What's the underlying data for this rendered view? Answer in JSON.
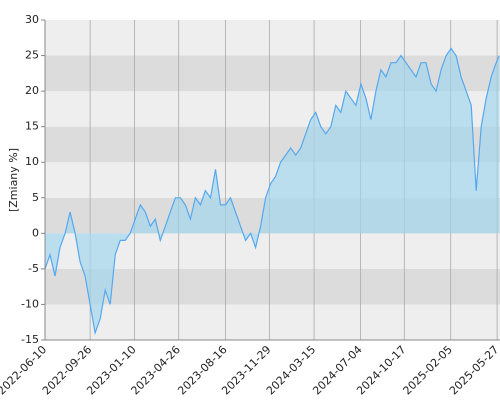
{
  "chart_data": {
    "type": "area",
    "y_label": "[Zmiany %]",
    "x": [
      "2022-06-10",
      "2022-06-22",
      "2022-07-04",
      "2022-07-16",
      "2022-07-28",
      "2022-08-09",
      "2022-08-21",
      "2022-09-02",
      "2022-09-14",
      "2022-09-26",
      "2022-10-08",
      "2022-10-20",
      "2022-11-01",
      "2022-11-13",
      "2022-11-25",
      "2022-12-07",
      "2022-12-19",
      "2022-12-31",
      "2023-01-12",
      "2023-01-24",
      "2023-02-05",
      "2023-02-17",
      "2023-03-01",
      "2023-03-13",
      "2023-03-25",
      "2023-04-06",
      "2023-04-18",
      "2023-04-30",
      "2023-05-12",
      "2023-05-24",
      "2023-06-05",
      "2023-06-17",
      "2023-06-29",
      "2023-07-11",
      "2023-07-23",
      "2023-08-04",
      "2023-08-16",
      "2023-08-28",
      "2023-09-09",
      "2023-09-21",
      "2023-10-03",
      "2023-10-15",
      "2023-10-27",
      "2023-11-08",
      "2023-11-20",
      "2023-12-02",
      "2023-12-14",
      "2023-12-26",
      "2024-01-07",
      "2024-01-19",
      "2024-01-31",
      "2024-02-12",
      "2024-02-24",
      "2024-03-07",
      "2024-03-19",
      "2024-03-31",
      "2024-04-12",
      "2024-04-24",
      "2024-05-06",
      "2024-05-18",
      "2024-05-30",
      "2024-06-11",
      "2024-06-23",
      "2024-07-05",
      "2024-07-17",
      "2024-07-29",
      "2024-08-10",
      "2024-08-22",
      "2024-09-03",
      "2024-09-15",
      "2024-09-27",
      "2024-10-09",
      "2024-10-21",
      "2024-11-02",
      "2024-11-14",
      "2024-11-26",
      "2024-12-08",
      "2024-12-20",
      "2025-01-01",
      "2025-01-13",
      "2025-01-25",
      "2025-02-06",
      "2025-02-18",
      "2025-03-02",
      "2025-03-14",
      "2025-03-26",
      "2025-04-07",
      "2025-04-19",
      "2025-05-01",
      "2025-05-13",
      "2025-05-25",
      "2025-06-01"
    ],
    "series": [
      {
        "color": "#55a8ee",
        "values": [
          -5,
          -3,
          -6,
          -2,
          0,
          3,
          0,
          -4,
          -6,
          -10,
          -14,
          -12,
          -8,
          -10,
          -3,
          -1,
          -1,
          0,
          2,
          4,
          3,
          1,
          2,
          -1,
          1,
          3,
          5,
          5,
          4,
          2,
          5,
          4,
          6,
          5,
          9,
          4,
          4,
          5,
          3,
          1,
          -1,
          0,
          -2,
          1,
          5,
          7,
          8,
          10,
          11,
          12,
          11,
          12,
          14,
          16,
          17,
          15,
          14,
          15,
          18,
          17,
          20,
          19,
          18,
          21,
          19,
          16,
          20,
          23,
          22,
          24,
          24,
          25,
          24,
          23,
          22,
          24,
          24,
          21,
          20,
          23,
          25,
          26,
          25,
          22,
          20,
          18,
          6,
          15,
          19,
          22,
          24,
          25
        ]
      }
    ],
    "xlim": [
      "2022-06-10",
      "2025-06-03"
    ],
    "xticks": [
      "2022-06-10",
      "2022-09-26",
      "2023-01-10",
      "2023-04-26",
      "2023-08-16",
      "2023-11-29",
      "2024-03-15",
      "2024-07-04",
      "2024-10-17",
      "2025-02-05",
      "2025-05-27"
    ],
    "ylim": [
      -15,
      30
    ],
    "yticks": [
      -15,
      -10,
      -5,
      0,
      5,
      10,
      15,
      20,
      25,
      30
    ],
    "grid": true
  }
}
